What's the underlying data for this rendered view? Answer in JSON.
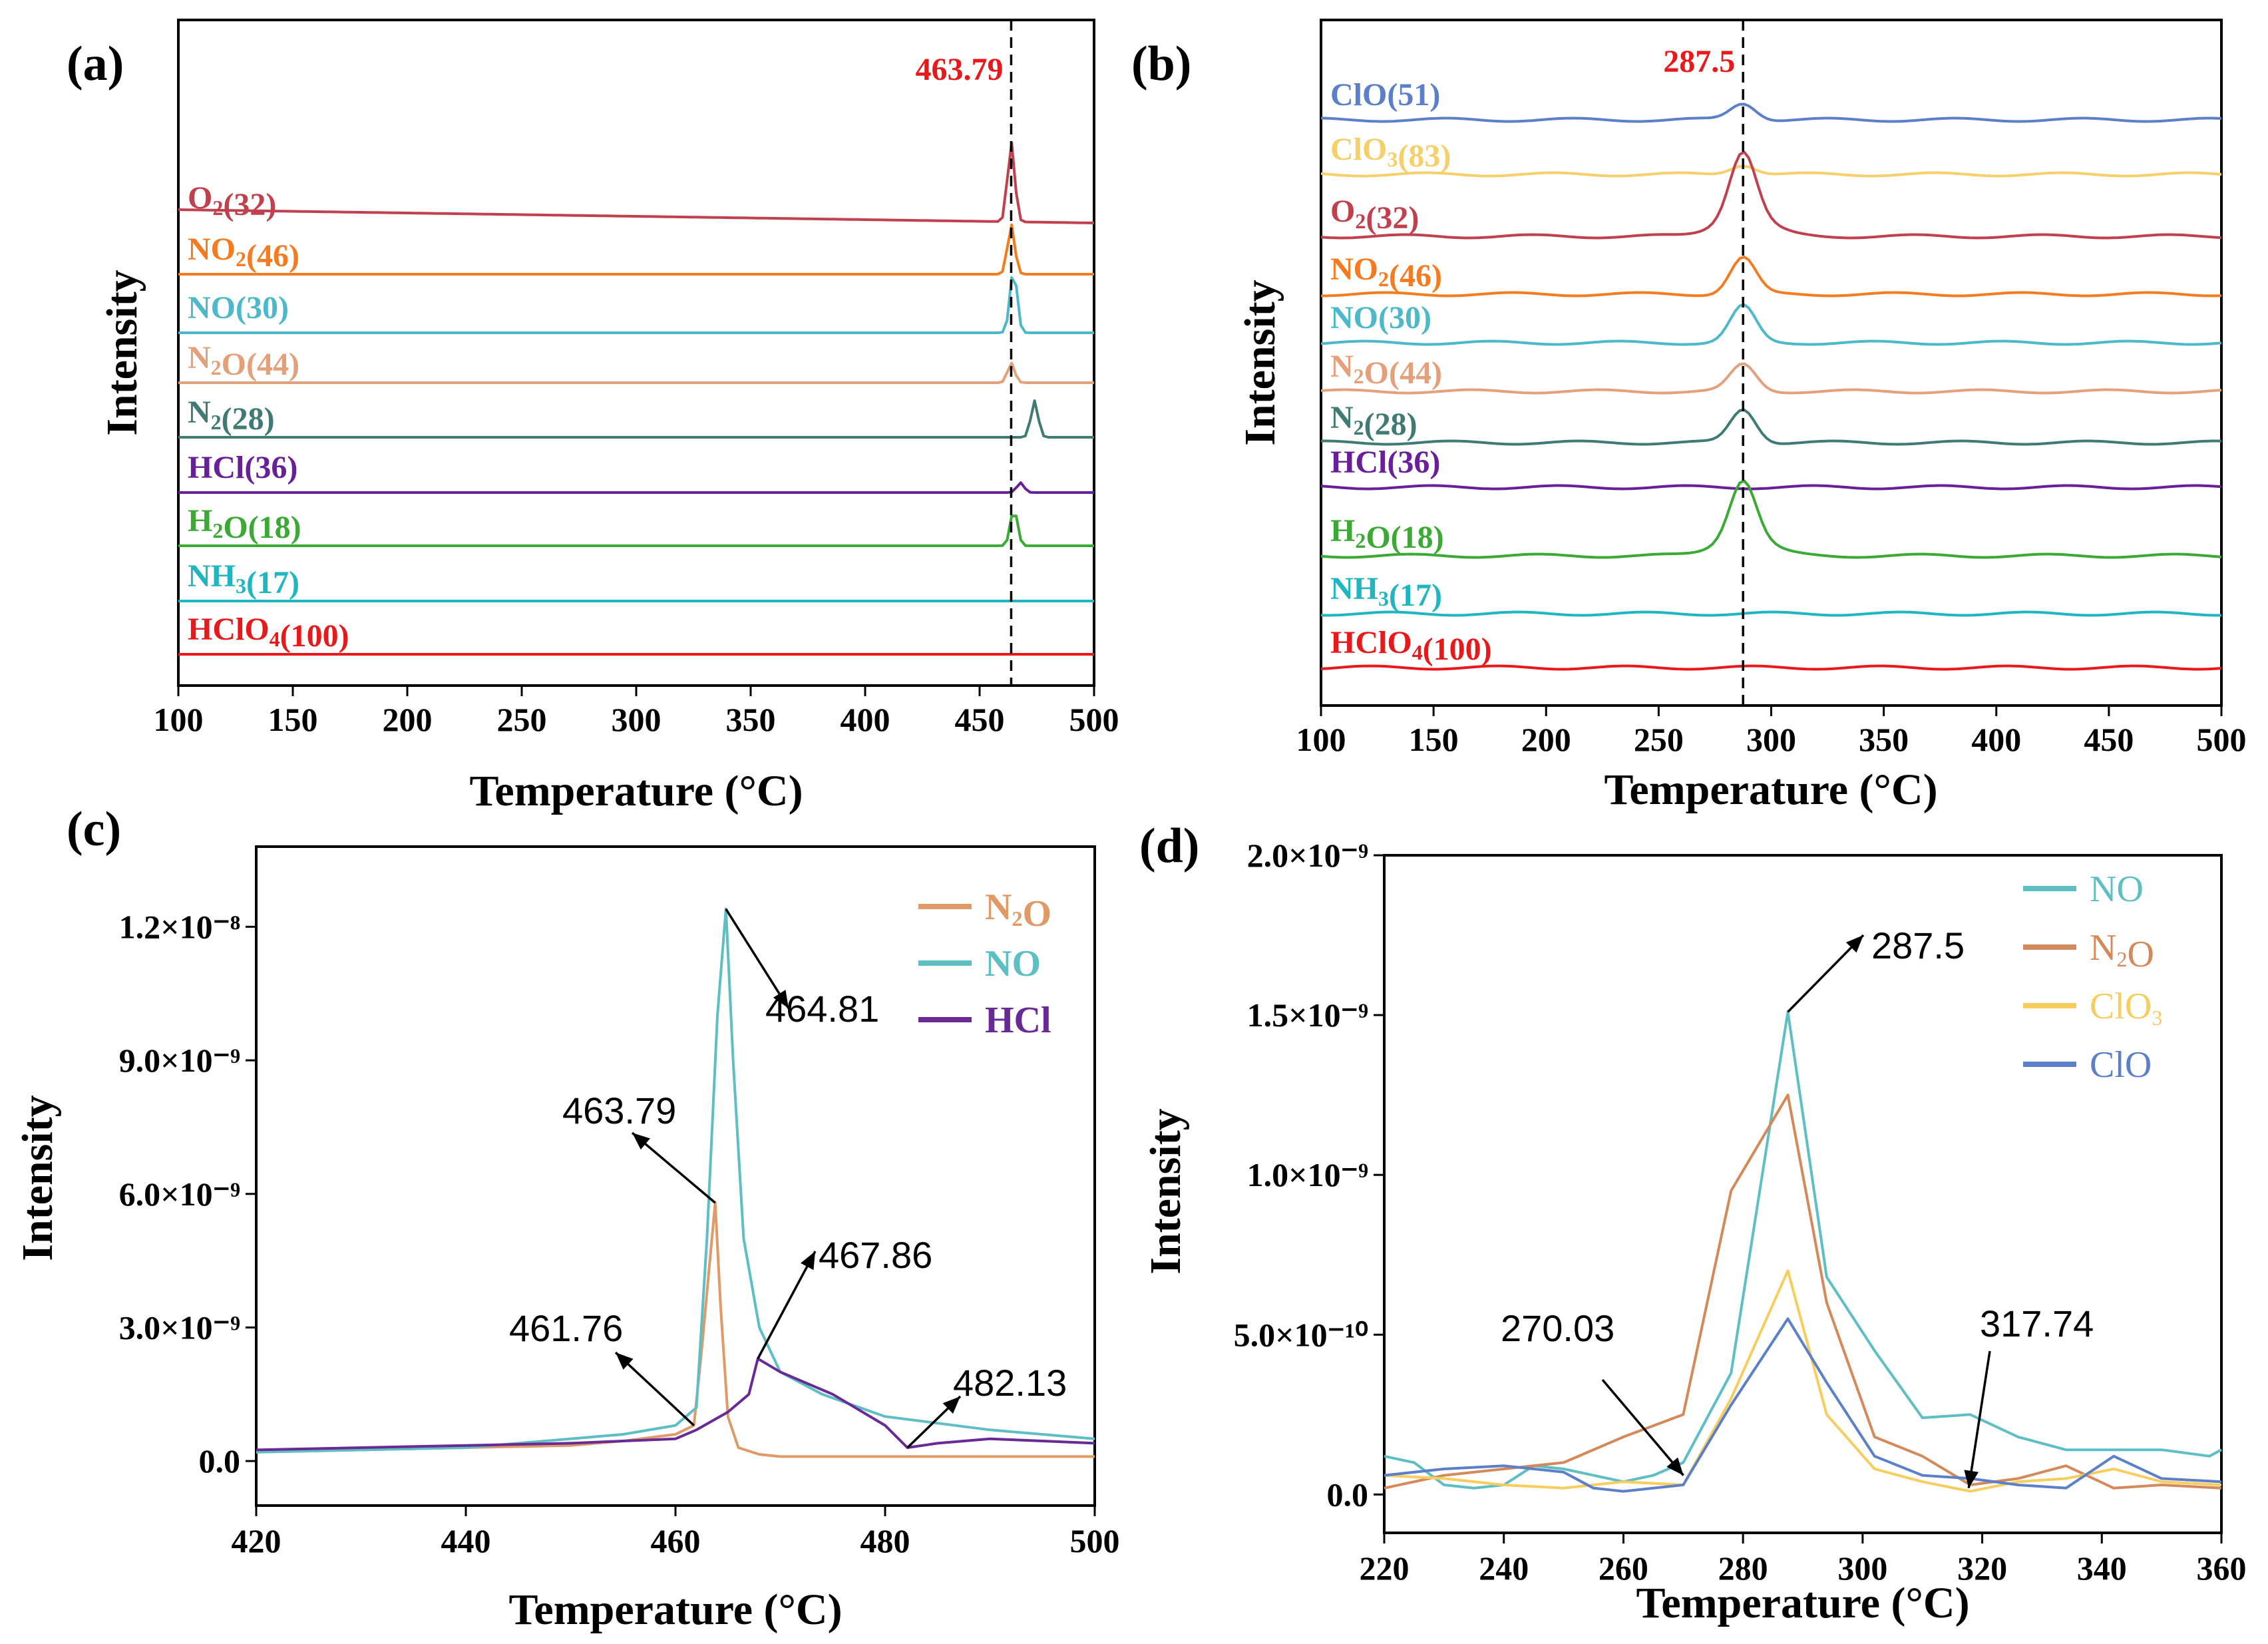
{
  "chart_data": [
    {
      "panel": "(a)",
      "type": "line",
      "xlabel": "Temperature (°C)",
      "ylabel": "Intensity",
      "xlim": [
        100,
        500
      ],
      "xticks": [
        "100",
        "150",
        "200",
        "250",
        "300",
        "350",
        "400",
        "450",
        "500"
      ],
      "marker_x": 463.79,
      "marker_label": "463.79",
      "series": [
        {
          "name": "O₂(32)",
          "color": "#c0404e",
          "peak_x": 463.79
        },
        {
          "name": "NO₂(46)",
          "color": "#f47b20",
          "peak_x": 463.79
        },
        {
          "name": "NO(30)",
          "color": "#4db8c8",
          "peak_x": 464.81
        },
        {
          "name": "N₂O(44)",
          "color": "#e4a07a",
          "peak_x": 463.79
        },
        {
          "name": "N₂(28)",
          "color": "#3f7a74",
          "peak_x": 474
        },
        {
          "name": "HCl(36)",
          "color": "#6a1f9a",
          "peak_x": 467.86
        },
        {
          "name": "H₂O(18)",
          "color": "#3aaa35",
          "peak_x": 465
        },
        {
          "name": "NH₃(17)",
          "color": "#1fb6c1",
          "peak_x": null
        },
        {
          "name": "HClO₄(100)",
          "color": "#e8191a",
          "peak_x": null
        }
      ]
    },
    {
      "panel": "(b)",
      "type": "line",
      "xlabel": "Temperature (°C)",
      "ylabel": "Intensity",
      "xlim": [
        100,
        500
      ],
      "xticks": [
        "100",
        "150",
        "200",
        "250",
        "300",
        "350",
        "400",
        "450",
        "500"
      ],
      "marker_x": 287.5,
      "marker_label": "287.5",
      "series": [
        {
          "name": "ClO(51)",
          "color": "#5b7fc9",
          "peak_x": 287.5
        },
        {
          "name": "ClO₃(83)",
          "color": "#f5cf6a",
          "peak_x": 287.5
        },
        {
          "name": "O₂(32)",
          "color": "#c0404e",
          "peak_x": 287.5
        },
        {
          "name": "NO₂(46)",
          "color": "#f47b20",
          "peak_x": 287.5
        },
        {
          "name": "NO(30)",
          "color": "#4db8c8",
          "peak_x": 287.5
        },
        {
          "name": "N₂O(44)",
          "color": "#e4a07a",
          "peak_x": 287.5
        },
        {
          "name": "N₂(28)",
          "color": "#3f7a74",
          "peak_x": 287.5
        },
        {
          "name": "HCl(36)",
          "color": "#6a1f9a",
          "peak_x": null
        },
        {
          "name": "H₂O(18)",
          "color": "#3aaa35",
          "peak_x": 287.5
        },
        {
          "name": "NH₃(17)",
          "color": "#1fb6c1",
          "peak_x": null
        },
        {
          "name": "HClO₄(100)",
          "color": "#e8191a",
          "peak_x": null
        }
      ]
    },
    {
      "panel": "(c)",
      "type": "line",
      "xlabel": "Temperature (°C)",
      "ylabel": "Intensity",
      "xlim": [
        420,
        500
      ],
      "ylim": [
        -1e-09,
        1.38e-08
      ],
      "xticks": [
        "420",
        "440",
        "460",
        "480",
        "500"
      ],
      "yticks": [
        "0.0",
        "3.0×10⁻⁹",
        "6.0×10⁻⁹",
        "9.0×10⁻⁹",
        "1.2×10⁻⁸"
      ],
      "legend": "top-right",
      "annotations": [
        "464.81",
        "463.79",
        "467.86",
        "461.76",
        "482.13"
      ],
      "series": [
        {
          "name": "N₂O",
          "color": "#e09a67",
          "x": [
            420,
            430,
            440,
            450,
            455,
            460,
            461.76,
            462.5,
            463.79,
            464.3,
            465,
            466,
            468,
            470,
            480,
            490,
            500
          ],
          "y": [
            2e-10,
            2.5e-10,
            3e-10,
            3.5e-10,
            4.5e-10,
            6e-10,
            8e-10,
            2.5e-09,
            5.8e-09,
            3.5e-09,
            1e-09,
            3e-10,
            1.5e-10,
            1e-10,
            1e-10,
            1e-10,
            1e-10
          ]
        },
        {
          "name": "NO",
          "color": "#5dbfc4",
          "x": [
            420,
            430,
            440,
            450,
            455,
            460,
            462,
            463,
            464,
            464.81,
            465.5,
            466.5,
            468,
            470,
            474,
            480,
            490,
            500
          ],
          "y": [
            2e-10,
            2.5e-10,
            3e-10,
            5e-10,
            6e-10,
            8e-10,
            1.2e-09,
            5e-09,
            1e-08,
            1.24e-08,
            9e-09,
            5e-09,
            3e-09,
            2e-09,
            1.5e-09,
            1e-09,
            7e-10,
            5e-10
          ]
        },
        {
          "name": "HCl",
          "color": "#6a2a96",
          "x": [
            420,
            430,
            440,
            450,
            460,
            462,
            465,
            467,
            467.86,
            470,
            475,
            480,
            482.13,
            485,
            490,
            495,
            500
          ],
          "y": [
            2.5e-10,
            3e-10,
            3.5e-10,
            4e-10,
            5e-10,
            7e-10,
            1.1e-09,
            1.5e-09,
            2.3e-09,
            2e-09,
            1.5e-09,
            8e-10,
            3e-10,
            4e-10,
            5e-10,
            4.5e-10,
            4e-10
          ]
        }
      ]
    },
    {
      "panel": "(d)",
      "type": "line",
      "xlabel": "Temperature (°C)",
      "ylabel": "Intensity",
      "xlim": [
        220,
        360
      ],
      "ylim": [
        -1.2e-10,
        2e-09
      ],
      "xticks": [
        "220",
        "240",
        "260",
        "280",
        "300",
        "320",
        "340",
        "360"
      ],
      "yticks": [
        "0.0",
        "5.0×10⁻¹⁰",
        "1.0×10⁻⁹",
        "1.5×10⁻⁹",
        "2.0×10⁻⁹"
      ],
      "legend": "top-right",
      "annotations": [
        "287.5",
        "270.03",
        "317.74"
      ],
      "series": [
        {
          "name": "NO",
          "color": "#5dbfc4",
          "x": [
            220,
            225,
            230,
            235,
            240,
            245,
            250,
            255,
            260,
            265,
            270,
            278,
            287.5,
            294,
            302,
            310,
            318,
            326,
            334,
            342,
            350,
            358,
            360
          ],
          "y": [
            1.2e-10,
            1e-10,
            3e-11,
            2e-11,
            3e-11,
            9e-11,
            8e-11,
            6e-11,
            4e-11,
            6e-11,
            1e-10,
            3.8e-10,
            1.51e-09,
            6.8e-10,
            4.5e-10,
            2.4e-10,
            2.5e-10,
            1.8e-10,
            1.4e-10,
            1.4e-10,
            1.4e-10,
            1.2e-10,
            1.4e-10
          ]
        },
        {
          "name": "N₂O",
          "color": "#d4895a",
          "x": [
            220,
            230,
            240,
            250,
            260,
            270,
            278,
            287.5,
            294,
            302,
            310,
            318,
            326,
            334,
            342,
            350,
            360
          ],
          "y": [
            2e-11,
            6e-11,
            8e-11,
            1e-10,
            1.8e-10,
            2.5e-10,
            9.5e-10,
            1.25e-09,
            6e-10,
            1.8e-10,
            1.2e-10,
            3e-11,
            5e-11,
            9e-11,
            2e-11,
            3e-11,
            2e-11
          ]
        },
        {
          "name": "ClO₃",
          "color": "#f7cd5e",
          "x": [
            220,
            230,
            240,
            250,
            260,
            270,
            278,
            287.5,
            294,
            302,
            310,
            318,
            326,
            334,
            342,
            350,
            360
          ],
          "y": [
            6e-11,
            5e-11,
            3e-11,
            2e-11,
            4e-11,
            3e-11,
            3e-10,
            7e-10,
            2.5e-10,
            8e-11,
            4e-11,
            1e-11,
            4e-11,
            5e-11,
            8e-11,
            4e-11,
            3e-11
          ]
        },
        {
          "name": "ClO",
          "color": "#5b7fc9",
          "x": [
            220,
            230,
            240,
            250,
            255,
            260,
            270,
            278,
            287.5,
            294,
            302,
            310,
            318,
            326,
            334,
            342,
            350,
            360
          ],
          "y": [
            6e-11,
            8e-11,
            9e-11,
            7e-11,
            2e-11,
            1e-11,
            3e-11,
            2.8e-10,
            5.5e-10,
            3.5e-10,
            1.2e-10,
            6e-11,
            5e-11,
            3e-11,
            2e-11,
            1.2e-10,
            5e-11,
            4e-11
          ]
        }
      ]
    }
  ]
}
